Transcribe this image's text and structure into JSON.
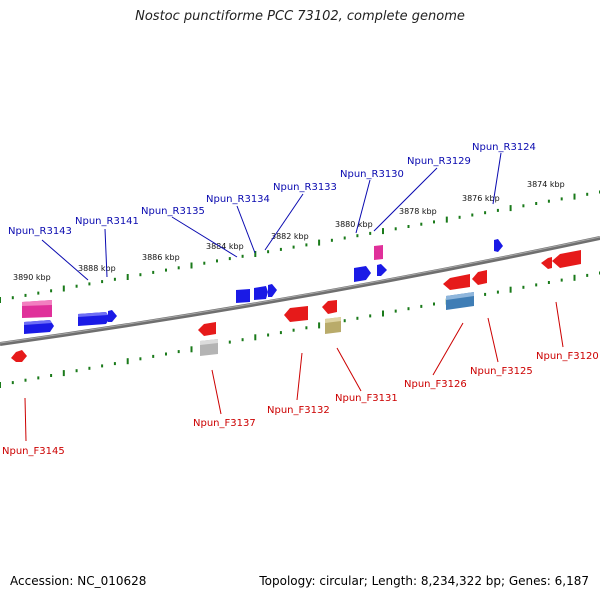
{
  "title": "Nostoc punctiforme PCC 73102, complete genome",
  "footer": {
    "accession": "Accession: NC_010628",
    "summary": "Topology: circular; Length: 8,234,322 bp; Genes: 6,187"
  },
  "colors": {
    "reverse_label": "#0a0ab0",
    "forward_label": "#cc0000",
    "reverse_gene": "#1a1ae6",
    "forward_gene": "#e61a1a",
    "rna_gene": "#e0309a",
    "pseudo_gene_grey": "#b4b4b4",
    "pseudo_gene_olive": "#b9ab6a",
    "misc_gene_blue": "#3f7db5",
    "tick": "#1a7a1a",
    "backbone": "#777777"
  },
  "kbp_labels": [
    {
      "kbp": 3874,
      "text": "3874 kbp"
    },
    {
      "kbp": 3876,
      "text": "3876 kbp"
    },
    {
      "kbp": 3878,
      "text": "3878 kbp"
    },
    {
      "kbp": 3880,
      "text": "3880 kbp"
    },
    {
      "kbp": 3882,
      "text": "3882 kbp"
    },
    {
      "kbp": 3884,
      "text": "3884 kbp"
    },
    {
      "kbp": 3886,
      "text": "3886 kbp"
    },
    {
      "kbp": 3888,
      "text": "3888 kbp"
    },
    {
      "kbp": 3890,
      "text": "3890 kbp"
    }
  ],
  "reverse_labels": [
    "Npun_R3143",
    "Npun_R3141",
    "Npun_R3135",
    "Npun_R3134",
    "Npun_R3133",
    "Npun_R3130",
    "Npun_R3129",
    "Npun_R3124"
  ],
  "forward_labels": [
    "Npun_F3145",
    "Npun_F3137",
    "Npun_F3132",
    "Npun_F3131",
    "Npun_F3126",
    "Npun_F3125",
    "Npun_F3120"
  ]
}
